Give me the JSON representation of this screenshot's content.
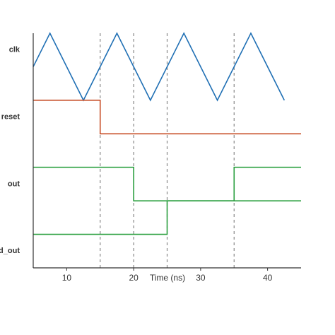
{
  "chart_data": {
    "type": "line",
    "xlabel": "Time (ns)",
    "xlim": [
      5,
      45
    ],
    "xticks": [
      10,
      20,
      30,
      40
    ],
    "ylim": [
      -0.25,
      3.25
    ],
    "yticks": [
      {
        "value": 3,
        "label": "clk"
      },
      {
        "value": 2,
        "label": "reset"
      },
      {
        "value": 1,
        "label": "out"
      },
      {
        "value": 0,
        "label": "d_out"
      }
    ],
    "vlines": [
      15,
      20,
      25,
      35
    ],
    "series": [
      {
        "color": "#1f6fb4",
        "x": [
          5,
          7.5,
          12.5,
          17.5,
          22.5,
          27.5,
          32.5,
          37.5,
          42.5
        ],
        "values": [
          2.75,
          3.25,
          2.25,
          3.25,
          2.25,
          3.25,
          2.25,
          3.25,
          2.25
        ]
      },
      {
        "color": "#c8502a",
        "x": [
          5,
          15,
          15,
          45
        ],
        "values": [
          2.25,
          2.25,
          1.75,
          1.75
        ]
      },
      {
        "color": "#2ca040",
        "x": [
          5,
          20,
          20,
          35,
          35,
          45
        ],
        "values": [
          1.25,
          1.25,
          0.75,
          0.75,
          1.25,
          1.25
        ]
      },
      {
        "color": "#2ca040",
        "x": [
          5,
          25,
          25,
          45
        ],
        "values": [
          0.25,
          0.25,
          0.75,
          0.75
        ]
      }
    ]
  }
}
